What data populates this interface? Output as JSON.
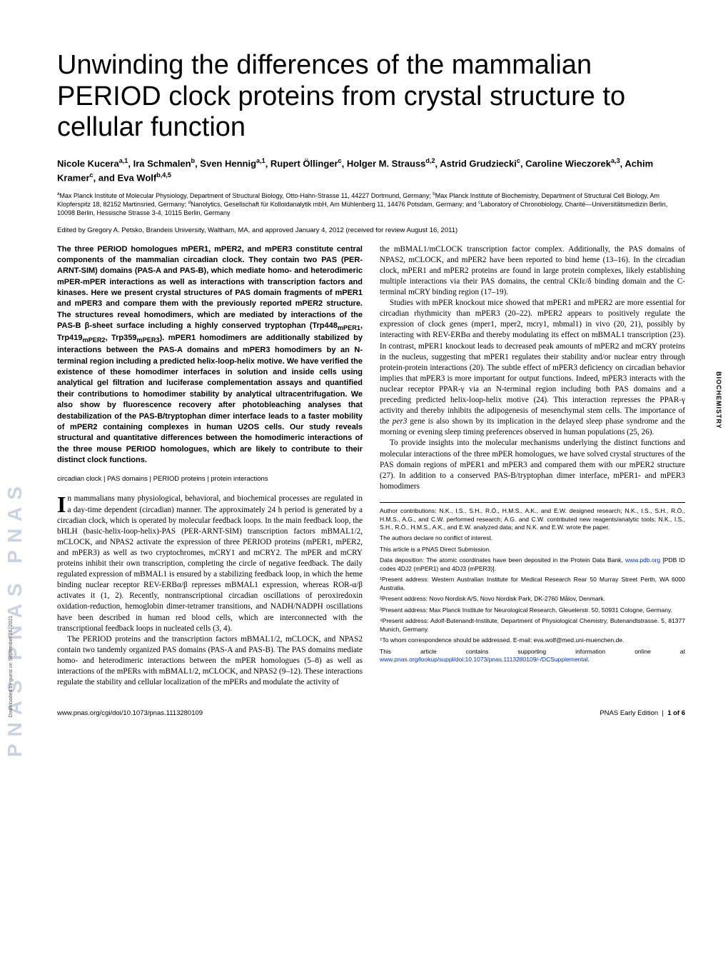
{
  "sidebar_text": "PNAS PNAS PNAS",
  "download_note": "Downloaded by guest on September 26, 2021",
  "section_label": "BIOCHEMISTRY",
  "title": "Unwinding the differences of the mammalian PERIOD clock proteins from crystal structure to cellular function",
  "authors_html": "Nicole Kucera<sup>a,1</sup>, Ira Schmalen<sup>b</sup>, Sven Hennig<sup>a,1</sup>, Rupert Öllinger<sup>c</sup>, Holger M. Strauss<sup>d,2</sup>, Astrid Grudziecki<sup>c</sup>, Caroline Wieczorek<sup>a,3</sup>, Achim Kramer<sup>c</sup>, and Eva Wolf<sup>b,4,5</sup>",
  "affiliations_html": "<sup>a</sup>Max Planck Institute of Molecular Physiology, Department of Structural Biology, Otto-Hahn-Strasse 11, 44227 Dortmund, Germany; <sup>b</sup>Max Planck Institute of Biochemistry, Department of Structural Cell Biology, Am Klopferspitz 18, 82152 Martinsried, Germany; <sup>d</sup>Nanolytics, Gesellschaft für Kolloidanalytik mbH, Am Mühlenberg 11, 14476 Potsdam, Germany; and <sup>c</sup>Laboratory of Chronobiology, Charité—Universitätsmedizin Berlin, 10098 Berlin, Hessische Strasse 3-4, 10115 Berlin, Germany",
  "edited": "Edited by Gregory A. Petsko, Brandeis University, Waltham, MA, and approved January 4, 2012 (received for review August 16, 2011)",
  "abstract_html": "The three PERIOD homologues mPER1, mPER2, and mPER3 constitute central components of the mammalian circadian clock. They contain two PAS (PER-ARNT-SIM) domains (PAS-A and PAS-B), which mediate homo- and heterodimeric mPER-mPER interactions as well as interactions with transcription factors and kinases. Here we present crystal structures of PAS domain fragments of mPER1 and mPER3 and compare them with the previously reported mPER2 structure. The structures reveal homodimers, which are mediated by interactions of the PAS-B β-sheet surface including a highly conserved tryptophan (Trp448<sub>mPER1</sub>, Trp419<sub>mPER2</sub>, Trp359<sub>mPER3</sub>). mPER1 homodimers are additionally stabilized by interactions between the PAS-A domains and mPER3 homodimers by an N-terminal region including a predicted helix-loop-helix motive. We have verified the existence of these homodimer interfaces in solution and inside cells using analytical gel filtration and luciferase complementation assays and quantified their contributions to homodimer stability by analytical ultracentrifugation. We also show by fluorescence recovery after photobleaching analyses that destabilization of the PAS-B/tryptophan dimer interface leads to a faster mobility of mPER2 containing complexes in human U2OS cells. Our study reveals structural and quantitative differences between the homodimeric interactions of the three mouse PERIOD homologues, which are likely to contribute to their distinct clock functions.",
  "keywords": "circadian clock | PAS domains | PERIOD proteins | protein interactions",
  "body_p1_html": "n mammalians many physiological, behavioral, and biochemical processes are regulated in a day-time dependent (circadian) manner. The approximately 24 h period is generated by a circadian clock, which is operated by molecular feedback loops. In the main feedback loop, the bHLH (basic-helix-loop-helix)-PAS (PER-ARNT-SIM) transcription factors mBMAL1/2, mCLOCK, and NPAS2 activate the expression of three PERIOD proteins (mPER1, mPER2, and mPER3) as well as two cryptochromes, mCRY1 and mCRY2. The mPER and mCRY proteins inhibit their own transcription, completing the circle of negative feedback. The daily regulated expression of mBMAL1 is ensured by a stabilizing feedback loop, in which the heme binding nuclear receptor REV-ERBα/β represses mBMAL1 expression, whereas ROR-α/β activates it (1, 2). Recently, nontranscriptional circadian oscillations of peroxiredoxin oxidation-reduction, hemoglobin dimer-tetramer transitions, and NADH/NADPH oscillations have been described in human red blood cells, which are interconnected with the transcriptional feedback loops in nucleated cells (3, 4).",
  "body_p2_html": "The PERIOD proteins and the transcription factors mBMAL1/2, mCLOCK, and NPAS2 contain two tandemly organized PAS domains (PAS-A and PAS-B). The PAS domains mediate homo- and heterodimeric interactions between the mPER homologues (5–8) as well as interactions of the mPERs with mBMAL1/2, mCLOCK, and NPAS2 (9–12). These interactions regulate the stability and cellular localization of the mPERs and modulate the activity of",
  "body_p3_html": "the mBMAL1/mCLOCK transcription factor complex. Additionally, the PAS domains of NPAS2, mCLOCK, and mPER2 have been reported to bind heme (13–16). In the circadian clock, mPER1 and mPER2 proteins are found in large protein complexes, likely establishing multiple interactions via their PAS domains, the central CKIε/δ binding domain and the C-terminal mCRY binding region (17–19).",
  "body_p4_html": "Studies with mPER knockout mice showed that mPER1 and mPER2 are more essential for circadian rhythmicity than mPER3 (20–22). mPER2 appears to positively regulate the expression of clock genes (mper1, mper2, mcry1, mbmal1) in vivo (20, 21), possibly by interacting with REV-ERBα and thereby modulating its effect on mBMAL1 transcription (23). In contrast, mPER1 knockout leads to decreased peak amounts of mPER2 and mCRY proteins in the nucleus, suggesting that mPER1 regulates their stability and/or nuclear entry through protein-protein interactions (20). The subtle effect of mPER3 deficiency on circadian behavior implies that mPER3 is more important for output functions. Indeed, mPER3 interacts with the nuclear receptor PPAR-γ via an N-terminal region including both PAS domains and a preceding predicted helix-loop-helix motive (24). This interaction represses the PPAR-γ activity and thereby inhibits the adipogenesis of mesenchymal stem cells. The importance of the <i>per3</i> gene is also shown by its implication in the delayed sleep phase syndrome and the morning or evening sleep timing preferences observed in human populations (25, 26).",
  "body_p5_html": "To provide insights into the molecular mechanisms underlying the distinct functions and molecular interactions of the three mPER homologues, we have solved crystal structures of the PAS domain regions of mPER1 and mPER3 and compared them with our mPER2 structure (27). In addition to a conserved PAS-B/tryptophan dimer interface, mPER1- and mPER3 homodimers",
  "footnotes": {
    "author_contrib": "Author contributions: N.K., I.S., S.H., R.Ö., H.M.S., A.K., and E.W. designed research; N.K., I.S., S.H., R.Ö., H.M.S., A.G., and C.W. performed research; A.G. and C.W. contributed new reagents/analytic tools; N.K., I.S., S.H., R.Ö., H.M.S., A.K., and E.W. analyzed data; and N.K. and E.W. wrote the paper.",
    "conflict": "The authors declare no conflict of interest.",
    "direct": "This article is a PNAS Direct Submission.",
    "data_html": "Data deposition: The atomic coordinates have been deposited in the Protein Data Bank, <span class=\"link\">www.pdb.org</span> [PDB ID codes 4DJ2 (mPER1) and 4DJ3 (mPER3)].",
    "p1": "¹Present address: Western Australian Institute for Medical Research Rear 50 Murray Street Perth, WA 6000 Australia.",
    "p2": "²Present address: Novo Nordisk A/S, Novo Nordisk Park, DK-2760 Målov, Denmark.",
    "p3": "³Present address: Max Planck Institute for Neurological Research, Gleuelerstr. 50, 50931 Cologne, Germany.",
    "p4": "⁴Present address: Adolf-Butenandt-Institute, Department of Physiological Chemistry, Butenandtstrasse. 5, 81377 Munich, Germany.",
    "p5": "⁵To whom correspondence should be addressed. E-mail: eva.wolf@med.uni-muenchen.de.",
    "supp_html": "This article contains supporting information online at <span class=\"link\">www.pnas.org/lookup/suppl/doi:10.1073/pnas.1113280109/-/DCSupplemental</span>."
  },
  "footer": {
    "left": "www.pnas.org/cgi/doi/10.1073/pnas.1113280109",
    "right_html": "PNAS Early Edition &nbsp;|&nbsp; <strong>1 of 6</strong>"
  }
}
